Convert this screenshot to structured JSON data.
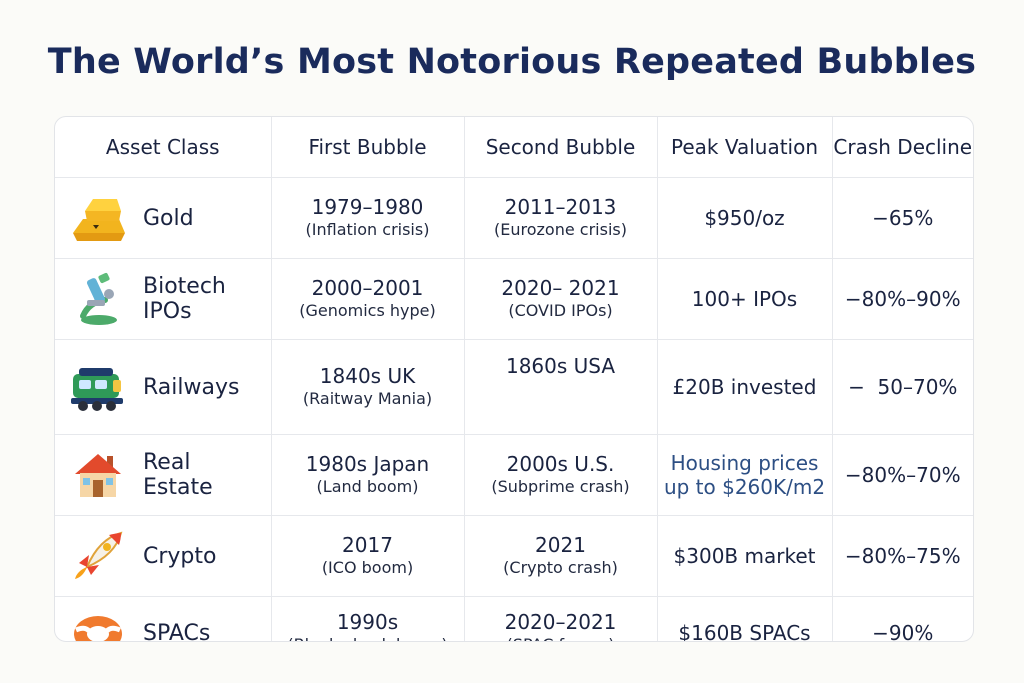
{
  "title": "The World’s Most Notorious Repeated Bubbles",
  "columns": [
    "Asset Class",
    "First Bubble",
    "Second Bubble",
    "Peak Valuation",
    "Crash Decline"
  ],
  "rows": [
    {
      "asset": "Gold",
      "icon": "gold-bar-icon",
      "first": "1979–1980",
      "first_note": "(Inflation crisis)",
      "second": "2011–2013",
      "second_note": "(Eurozone crisis)",
      "peak": "$950/oz",
      "decline": "−65%"
    },
    {
      "asset": "Biotech\nIPOs",
      "icon": "microscope-icon",
      "first": "2000–2001",
      "first_note": "(Genomics hype)",
      "second": "2020– 2021",
      "second_note": "(COVID IPOs)",
      "peak": "100+ IPOs",
      "decline": "−80%–90%"
    },
    {
      "asset": "Railways",
      "icon": "train-icon",
      "first": "1840s UK",
      "first_note": "(Raitway Mania)",
      "second": "1860s USA",
      "second_note": "",
      "peak": "£20B invested",
      "decline": "−  50–70%"
    },
    {
      "asset": "Real\nEstate",
      "icon": "house-icon",
      "first": "1980s Japan",
      "first_note": "(Land boom)",
      "second": "2000s U.S.",
      "second_note": "(Subprime crash)",
      "peak": "Housing prices\nup to $260K/m2",
      "decline": "−80%–70%"
    },
    {
      "asset": "Crypto",
      "icon": "rocket-icon",
      "first": "2017",
      "first_note": "(ICO boom)",
      "second": "2021",
      "second_note": "(Crypto crash)",
      "peak": "$300B market",
      "decline": "−80%–75%"
    },
    {
      "asset": "SPACs",
      "icon": "life-ring-icon",
      "first": "1990s",
      "first_note": "(Blank-check boom)",
      "second": "2020–2021",
      "second_note": "(SPAC frenzy)",
      "peak": "$160B SPACs",
      "decline": "−90%"
    }
  ]
}
